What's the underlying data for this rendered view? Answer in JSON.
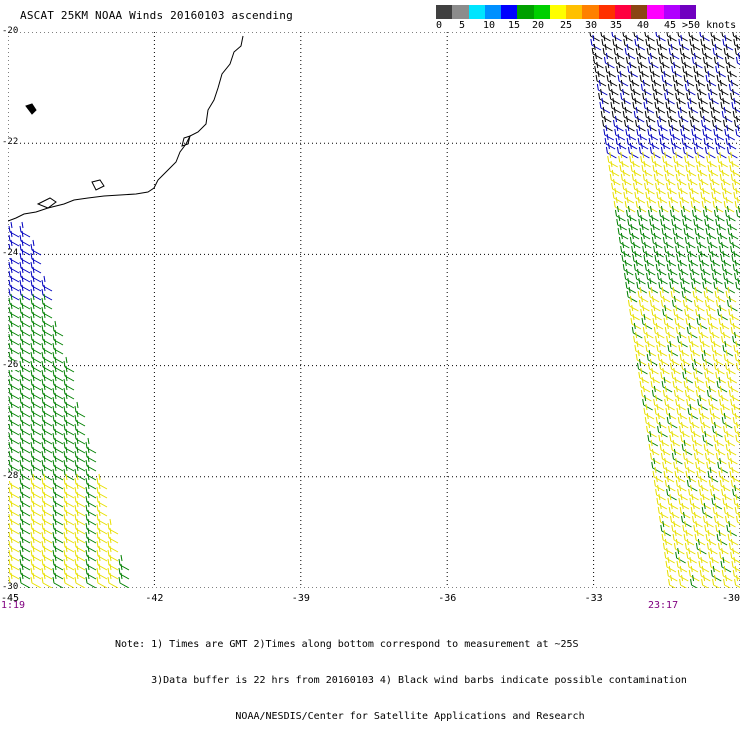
{
  "title": "ASCAT 25KM NOAA Winds 20160103 ascending",
  "legend": {
    "colors": [
      "#404040",
      "#8c8c8c",
      "#00e5ff",
      "#0090ff",
      "#0000ff",
      "#00a000",
      "#00d000",
      "#ffff00",
      "#ffc000",
      "#ff8000",
      "#ff3000",
      "#ff0040",
      "#8b4513",
      "#ff00ff",
      "#b000ff",
      "#7000c0"
    ],
    "labels": [
      "0",
      "5",
      "10",
      "15",
      "20",
      "25",
      "30",
      "35",
      "40",
      "45",
      ">50 knots"
    ]
  },
  "map": {
    "lat_labels": [
      "-20",
      "-22",
      "-24",
      "-26",
      "-28",
      "-30"
    ],
    "lon_labels": [
      "-45",
      "-42",
      "-39",
      "-36",
      "-33",
      "-30"
    ],
    "lat_range": [
      -30,
      -20
    ],
    "lon_range": [
      -45,
      -30
    ],
    "colors": {
      "coast": "#000000",
      "grid": "#000000",
      "wind_green": "#008000",
      "wind_yellow": "#e8e000",
      "wind_blue": "#0000c0",
      "wind_contaminated": "#000000"
    }
  },
  "times": {
    "left": "1:19",
    "right": "23:17"
  },
  "notes": [
    "Note: 1) Times are GMT 2)Times along bottom correspond to measurement at ~25S",
    "      3)Data buffer is 22 hrs from 20160103 4) Black wind barbs indicate possible contamination",
    "                    NOAA/NESDIS/Center for Satellite Applications and Research"
  ]
}
